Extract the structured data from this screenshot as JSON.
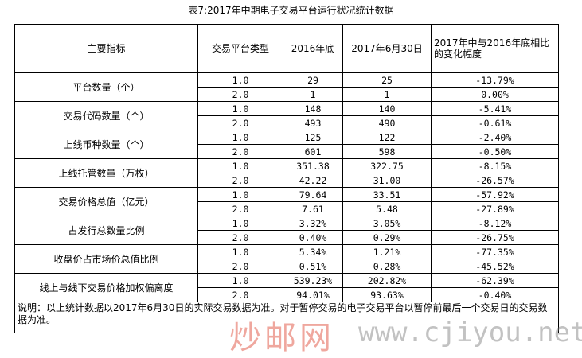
{
  "title": "表7:2017年中期电子交易平台运行状况统计数据",
  "table": {
    "header": [
      "主要指标",
      "交易平台类型",
      "2016年底",
      "2017年6月30日",
      "2017年中与2016年底相比的变化幅度"
    ],
    "groups": [
      {
        "name": "平台数量（个）",
        "rows": [
          [
            "1.0",
            "29",
            "25",
            "-13.79%"
          ],
          [
            "2.0",
            "1",
            "1",
            "0.00%"
          ]
        ]
      },
      {
        "name": "交易代码数量（个）",
        "rows": [
          [
            "1.0",
            "148",
            "140",
            "-5.41%"
          ],
          [
            "2.0",
            "493",
            "490",
            "-0.61%"
          ]
        ]
      },
      {
        "name": "上线币种数量（个）",
        "rows": [
          [
            "1.0",
            "125",
            "122",
            "-2.40%"
          ],
          [
            "2.0",
            "601",
            "598",
            "-0.50%"
          ]
        ]
      },
      {
        "name": "上线托管数量（万枚）",
        "rows": [
          [
            "1.0",
            "351.38",
            "322.75",
            "-8.15%"
          ],
          [
            "2.0",
            "42.22",
            "31.00",
            "-26.57%"
          ]
        ]
      },
      {
        "name": "交易价格总值（亿元）",
        "rows": [
          [
            "1.0",
            "79.64",
            "33.51",
            "-57.92%"
          ],
          [
            "2.0",
            "7.61",
            "5.48",
            "-27.89%"
          ]
        ]
      },
      {
        "name": "占发行总数量比例",
        "rows": [
          [
            "1.0",
            "3.32%",
            "3.05%",
            "-8.12%"
          ],
          [
            "2.0",
            "0.40%",
            "0.29%",
            "-26.75%"
          ]
        ]
      },
      {
        "name": "收盘价占市场价总值比例",
        "rows": [
          [
            "1.0",
            "5.34%",
            "1.21%",
            "-77.35%"
          ],
          [
            "2.0",
            "0.51%",
            "0.28%",
            "-45.52%"
          ]
        ]
      },
      {
        "name": "线上与线下交易价格加权偏离度",
        "rows": [
          [
            "1.0",
            "539.23%",
            "202.82%",
            "-62.39%"
          ],
          [
            "2.0",
            "94.01%",
            "93.63%",
            "-0.40%"
          ]
        ]
      }
    ],
    "note": "说明：以上统计数据以2017年6月30日的实际交易数据为准。对于暂停交易的电子交易平台以暂停前最后一个交易日的交易数据为准。"
  },
  "watermark": {
    "brand": "炒邮网",
    "url": "www.cjiyou.net"
  }
}
